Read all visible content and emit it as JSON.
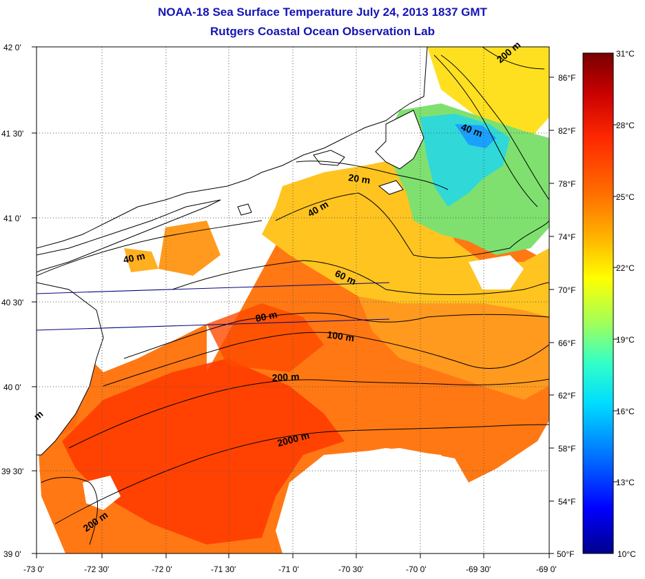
{
  "header": {
    "title": "NOAA-18 Sea Surface Temperature July 24, 2013 1837 GMT",
    "subtitle": "Rutgers Coastal Ocean Observation Lab"
  },
  "axes": {
    "lat_labels": [
      "42 0'",
      "41 30'",
      "41 0'",
      "40 30'",
      "40 0'",
      "39 30'",
      "39 0'"
    ],
    "lon_labels": [
      "-73 0'",
      "-72 30'",
      "-72 0'",
      "-71 30'",
      "-71 0'",
      "-70 30'",
      "-70 0'",
      "-69 30'",
      "-69 0'"
    ]
  },
  "contours": [
    {
      "label": "20 m"
    },
    {
      "label": "40 m"
    },
    {
      "label": "40 m"
    },
    {
      "label": "40 m"
    },
    {
      "label": "60 m"
    },
    {
      "label": "80 m"
    },
    {
      "label": "100 m"
    },
    {
      "label": "200 m"
    },
    {
      "label": "200 m"
    },
    {
      "label": "200 m"
    },
    {
      "label": "2000 m"
    },
    {
      "label": "m"
    }
  ],
  "colorbar": {
    "celsius_labels": [
      "31°C",
      "28°C",
      "25°C",
      "22°C",
      "19°C",
      "16°C",
      "13°C",
      "10°C"
    ],
    "fahrenheit_labels": [
      "86°F",
      "82°F",
      "78°F",
      "74°F",
      "70°F",
      "66°F",
      "62°F",
      "58°F",
      "54°F",
      "50°F"
    ],
    "colors": [
      "#00008c",
      "#0000ff",
      "#0078ff",
      "#00dcff",
      "#32ffc8",
      "#a0ff5a",
      "#ffff00",
      "#ffb400",
      "#ff6e00",
      "#ff2800",
      "#c80000",
      "#780000"
    ]
  }
}
